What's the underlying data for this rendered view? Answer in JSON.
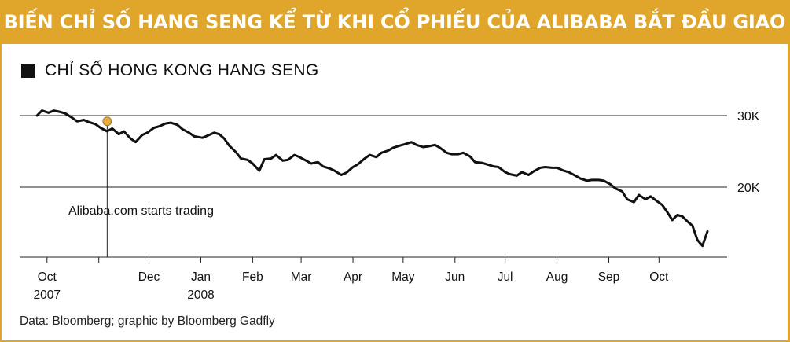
{
  "title": "DIỄN BIẾN CHỈ SỐ HANG SENG KỂ TỪ KHI CỔ PHIẾU CỦA ALIBABA BẮT ĐẦU GIAO DỊCH",
  "colors": {
    "banner": "#e0a52b",
    "border": "#e0a52b",
    "line": "#111111",
    "grid": "#222222",
    "marker": "#e8a93b"
  },
  "chart_data": {
    "type": "line",
    "legend": "CHỈ SỐ HONG KONG HANG SENG",
    "y_ticks": [
      {
        "value": 30000,
        "label": "30K"
      },
      {
        "value": 20000,
        "label": "20K"
      }
    ],
    "ylim": [
      10000,
      30500
    ],
    "x_ticks": [
      {
        "date": "2007-10-01",
        "line1": "Oct",
        "line2": "2007"
      },
      {
        "date": "2007-11-01",
        "line1": "",
        "line2": ""
      },
      {
        "date": "2007-12-01",
        "line1": "Dec",
        "line2": ""
      },
      {
        "date": "2008-01-01",
        "line1": "Jan",
        "line2": "2008"
      },
      {
        "date": "2008-02-01",
        "line1": "Feb",
        "line2": ""
      },
      {
        "date": "2008-03-01",
        "line1": "Mar",
        "line2": ""
      },
      {
        "date": "2008-04-01",
        "line1": "Apr",
        "line2": ""
      },
      {
        "date": "2008-05-01",
        "line1": "May",
        "line2": ""
      },
      {
        "date": "2008-06-01",
        "line1": "Jun",
        "line2": ""
      },
      {
        "date": "2008-07-01",
        "line1": "Jul",
        "line2": ""
      },
      {
        "date": "2008-08-01",
        "line1": "Aug",
        "line2": ""
      },
      {
        "date": "2008-09-01",
        "line1": "Sep",
        "line2": ""
      },
      {
        "date": "2008-10-01",
        "line1": "Oct",
        "line2": ""
      }
    ],
    "xlim": [
      "2007-09-25",
      "2008-10-30"
    ],
    "series": [
      {
        "points": [
          [
            "2007-09-25",
            30000
          ],
          [
            "2007-09-28",
            30700
          ],
          [
            "2007-10-02",
            30400
          ],
          [
            "2007-10-05",
            30700
          ],
          [
            "2007-10-09",
            30500
          ],
          [
            "2007-10-12",
            30300
          ],
          [
            "2007-10-16",
            29700
          ],
          [
            "2007-10-19",
            29200
          ],
          [
            "2007-10-23",
            29400
          ],
          [
            "2007-10-26",
            29100
          ],
          [
            "2007-10-30",
            28800
          ],
          [
            "2007-11-02",
            28300
          ],
          [
            "2007-11-06",
            27800
          ],
          [
            "2007-11-09",
            28200
          ],
          [
            "2007-11-13",
            27400
          ],
          [
            "2007-11-16",
            27800
          ],
          [
            "2007-11-20",
            26800
          ],
          [
            "2007-11-23",
            26300
          ],
          [
            "2007-11-27",
            27300
          ],
          [
            "2007-11-30",
            27600
          ],
          [
            "2007-12-04",
            28300
          ],
          [
            "2007-12-07",
            28500
          ],
          [
            "2007-12-11",
            28900
          ],
          [
            "2007-12-14",
            29000
          ],
          [
            "2007-12-18",
            28700
          ],
          [
            "2007-12-21",
            28100
          ],
          [
            "2007-12-25",
            27600
          ],
          [
            "2007-12-28",
            27100
          ],
          [
            "2008-01-02",
            26900
          ],
          [
            "2008-01-05",
            27200
          ],
          [
            "2008-01-09",
            27600
          ],
          [
            "2008-01-12",
            27400
          ],
          [
            "2008-01-15",
            26800
          ],
          [
            "2008-01-18",
            25800
          ],
          [
            "2008-01-22",
            24900
          ],
          [
            "2008-01-25",
            24000
          ],
          [
            "2008-01-29",
            23800
          ],
          [
            "2008-02-01",
            23300
          ],
          [
            "2008-02-05",
            22300
          ],
          [
            "2008-02-08",
            23900
          ],
          [
            "2008-02-12",
            24000
          ],
          [
            "2008-02-15",
            24500
          ],
          [
            "2008-02-19",
            23700
          ],
          [
            "2008-02-22",
            23800
          ],
          [
            "2008-02-26",
            24500
          ],
          [
            "2008-02-29",
            24200
          ],
          [
            "2008-03-04",
            23700
          ],
          [
            "2008-03-07",
            23300
          ],
          [
            "2008-03-11",
            23500
          ],
          [
            "2008-03-14",
            22900
          ],
          [
            "2008-03-18",
            22600
          ],
          [
            "2008-03-21",
            22300
          ],
          [
            "2008-03-25",
            21700
          ],
          [
            "2008-03-28",
            22000
          ],
          [
            "2008-04-01",
            22800
          ],
          [
            "2008-04-04",
            23200
          ],
          [
            "2008-04-08",
            24000
          ],
          [
            "2008-04-11",
            24500
          ],
          [
            "2008-04-15",
            24200
          ],
          [
            "2008-04-18",
            24800
          ],
          [
            "2008-04-22",
            25100
          ],
          [
            "2008-04-25",
            25500
          ],
          [
            "2008-04-29",
            25800
          ],
          [
            "2008-05-02",
            26000
          ],
          [
            "2008-05-06",
            26300
          ],
          [
            "2008-05-09",
            25900
          ],
          [
            "2008-05-13",
            25600
          ],
          [
            "2008-05-16",
            25700
          ],
          [
            "2008-05-20",
            25900
          ],
          [
            "2008-05-23",
            25500
          ],
          [
            "2008-05-27",
            24800
          ],
          [
            "2008-05-30",
            24600
          ],
          [
            "2008-06-03",
            24600
          ],
          [
            "2008-06-06",
            24800
          ],
          [
            "2008-06-10",
            24300
          ],
          [
            "2008-06-13",
            23500
          ],
          [
            "2008-06-17",
            23400
          ],
          [
            "2008-06-20",
            23200
          ],
          [
            "2008-06-24",
            22900
          ],
          [
            "2008-06-27",
            22800
          ],
          [
            "2008-07-01",
            22100
          ],
          [
            "2008-07-04",
            21800
          ],
          [
            "2008-07-08",
            21600
          ],
          [
            "2008-07-11",
            22100
          ],
          [
            "2008-07-15",
            21700
          ],
          [
            "2008-07-18",
            22200
          ],
          [
            "2008-07-22",
            22700
          ],
          [
            "2008-07-25",
            22800
          ],
          [
            "2008-07-29",
            22700
          ],
          [
            "2008-08-01",
            22700
          ],
          [
            "2008-08-05",
            22300
          ],
          [
            "2008-08-08",
            22100
          ],
          [
            "2008-08-12",
            21600
          ],
          [
            "2008-08-15",
            21200
          ],
          [
            "2008-08-19",
            20900
          ],
          [
            "2008-08-22",
            21000
          ],
          [
            "2008-08-26",
            21000
          ],
          [
            "2008-08-29",
            20900
          ],
          [
            "2008-09-02",
            20400
          ],
          [
            "2008-09-05",
            19800
          ],
          [
            "2008-09-09",
            19400
          ],
          [
            "2008-09-12",
            18300
          ],
          [
            "2008-09-16",
            17900
          ],
          [
            "2008-09-19",
            18900
          ],
          [
            "2008-09-23",
            18300
          ],
          [
            "2008-09-26",
            18700
          ],
          [
            "2008-09-30",
            18000
          ],
          [
            "2008-10-03",
            17500
          ],
          [
            "2008-10-06",
            16500
          ],
          [
            "2008-10-09",
            15400
          ],
          [
            "2008-10-12",
            16100
          ],
          [
            "2008-10-15",
            15900
          ],
          [
            "2008-10-18",
            15200
          ],
          [
            "2008-10-21",
            14600
          ],
          [
            "2008-10-24",
            12600
          ],
          [
            "2008-10-27",
            11800
          ],
          [
            "2008-10-30",
            13800
          ]
        ]
      }
    ],
    "annotation": {
      "date": "2007-11-06",
      "value": 29200,
      "text": "Alibaba.com starts trading"
    },
    "source": "Data: Bloomberg; graphic by Bloomberg Gadfly"
  }
}
